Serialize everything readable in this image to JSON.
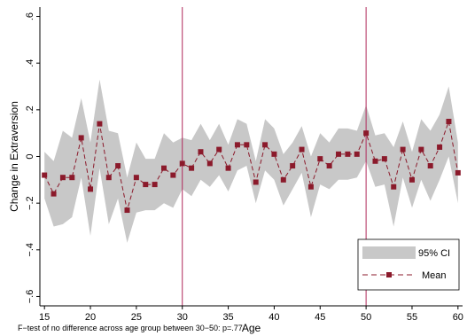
{
  "chart_data": {
    "type": "line",
    "title": "",
    "xlabel": "Age",
    "ylabel": "Change in Extraversion",
    "note": "F−test of no difference across age group between 30−50: p=.77",
    "xlim": [
      14.5,
      60.5
    ],
    "ylim": [
      -0.64,
      0.64
    ],
    "xticks": [
      15,
      20,
      25,
      30,
      35,
      40,
      45,
      50,
      55,
      60
    ],
    "xtick_labels": [
      "15",
      "20",
      "25",
      "30",
      "35",
      "40",
      "45",
      "50",
      "55",
      "60"
    ],
    "yticks": [
      -0.6,
      -0.4,
      -0.2,
      0,
      0.2,
      0.4,
      0.6
    ],
    "ytick_labels": [
      "−.6",
      "−.4",
      "−.2",
      "0",
      ".2",
      ".4",
      ".6"
    ],
    "vlines": [
      30,
      50
    ],
    "grid": false,
    "legend_position": "bottom-right",
    "colors": {
      "mean": "#8b1a2b",
      "ci": "#c8c8c8",
      "vline": "#b0285a"
    },
    "x": [
      15,
      16,
      17,
      18,
      19,
      20,
      21,
      22,
      23,
      24,
      25,
      26,
      27,
      28,
      29,
      30,
      31,
      32,
      33,
      34,
      35,
      36,
      37,
      38,
      39,
      40,
      41,
      42,
      43,
      44,
      45,
      46,
      47,
      48,
      49,
      50,
      51,
      52,
      53,
      54,
      55,
      56,
      57,
      58,
      59,
      60
    ],
    "series": [
      {
        "name": "Mean",
        "values": [
          -0.08,
          -0.16,
          -0.09,
          -0.09,
          0.08,
          -0.14,
          0.14,
          -0.09,
          -0.04,
          -0.23,
          -0.09,
          -0.12,
          -0.12,
          -0.05,
          -0.08,
          -0.03,
          -0.05,
          0.02,
          -0.03,
          0.03,
          -0.05,
          0.05,
          0.05,
          -0.11,
          0.05,
          0.01,
          -0.1,
          -0.04,
          0.03,
          -0.13,
          -0.01,
          -0.04,
          0.01,
          0.01,
          0.01,
          0.1,
          -0.02,
          -0.01,
          -0.13,
          0.03,
          -0.1,
          0.03,
          -0.04,
          0.04,
          0.15,
          -0.07
        ]
      },
      {
        "name": "95% CI",
        "lower": [
          -0.18,
          -0.3,
          -0.29,
          -0.26,
          -0.09,
          -0.34,
          -0.05,
          -0.29,
          -0.18,
          -0.37,
          -0.24,
          -0.23,
          -0.23,
          -0.2,
          -0.22,
          -0.14,
          -0.17,
          -0.1,
          -0.13,
          -0.08,
          -0.15,
          -0.06,
          -0.04,
          -0.2,
          -0.06,
          -0.1,
          -0.21,
          -0.14,
          -0.07,
          -0.26,
          -0.12,
          -0.14,
          -0.1,
          -0.1,
          -0.09,
          -0.02,
          -0.13,
          -0.12,
          -0.3,
          -0.09,
          -0.22,
          -0.1,
          -0.19,
          -0.1,
          0.0,
          -0.2
        ],
        "upper": [
          0.02,
          -0.02,
          0.11,
          0.08,
          0.25,
          0.06,
          0.33,
          0.11,
          0.1,
          -0.09,
          0.06,
          -0.01,
          -0.01,
          0.1,
          0.06,
          0.08,
          0.07,
          0.14,
          0.07,
          0.14,
          0.05,
          0.16,
          0.14,
          -0.02,
          0.16,
          0.12,
          0.01,
          0.06,
          0.13,
          0.0,
          0.1,
          0.06,
          0.12,
          0.12,
          0.11,
          0.22,
          0.09,
          0.1,
          0.04,
          0.15,
          0.02,
          0.16,
          0.11,
          0.18,
          0.3,
          0.06
        ]
      }
    ],
    "legend": [
      {
        "label": "95% CI"
      },
      {
        "label": "Mean"
      }
    ]
  }
}
